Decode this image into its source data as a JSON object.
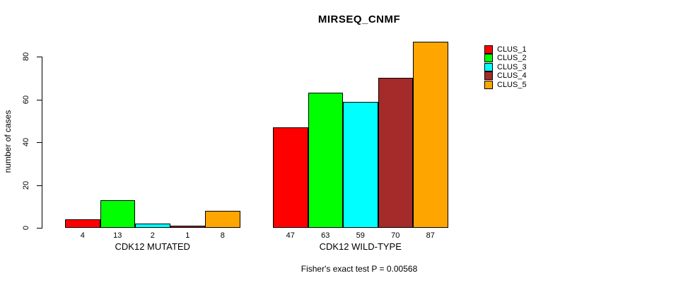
{
  "chart_data": {
    "type": "bar",
    "title": "MIRSEQ_CNMF",
    "ylabel": "number of cases",
    "xlabel": "",
    "ylim": [
      0,
      87
    ],
    "yticks": [
      0,
      20,
      40,
      60,
      80
    ],
    "grid": false,
    "legend_position": "right",
    "bar_value_labels": true,
    "categories": [
      "CDK12 MUTATED",
      "CDK12 WILD-TYPE"
    ],
    "series": [
      {
        "name": "CLUS_1",
        "color": "#ff0000",
        "values": [
          4,
          47
        ]
      },
      {
        "name": "CLUS_2",
        "color": "#00ff00",
        "values": [
          13,
          63
        ]
      },
      {
        "name": "CLUS_3",
        "color": "#00ffff",
        "values": [
          2,
          59
        ]
      },
      {
        "name": "CLUS_4",
        "color": "#a52a2a",
        "values": [
          1,
          70
        ]
      },
      {
        "name": "CLUS_5",
        "color": "#ffa500",
        "values": [
          8,
          87
        ]
      }
    ],
    "annotation": "Fisher's exact test P = 0.00568"
  }
}
